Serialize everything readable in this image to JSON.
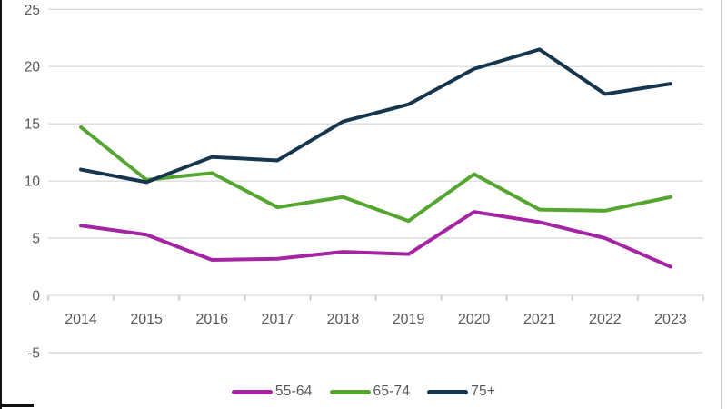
{
  "chart_data": {
    "type": "line",
    "title": "",
    "xlabel": "",
    "ylabel": "",
    "categories": [
      "2014",
      "2015",
      "2016",
      "2017",
      "2018",
      "2019",
      "2020",
      "2021",
      "2022",
      "2023"
    ],
    "series": [
      {
        "name": "55-64",
        "color": "#A524A3",
        "values": [
          6.1,
          5.3,
          3.1,
          3.2,
          3.8,
          3.6,
          7.3,
          6.4,
          5.0,
          2.5
        ]
      },
      {
        "name": "65-74",
        "color": "#55A630",
        "values": [
          14.7,
          10.1,
          10.7,
          7.7,
          8.6,
          6.5,
          10.6,
          7.5,
          7.4,
          8.6
        ]
      },
      {
        "name": "75+",
        "color": "#16364E",
        "values": [
          11.0,
          9.9,
          12.1,
          11.8,
          15.2,
          16.7,
          19.8,
          21.5,
          17.6,
          18.5
        ]
      }
    ],
    "ylim": [
      -5,
      25
    ],
    "yticks": [
      25,
      20,
      15,
      10,
      5,
      0,
      -5
    ],
    "grid": true,
    "legend_position": "bottom",
    "style": {
      "gridline_color": "#D9D9D9",
      "axis_tick_color": "#BFBFBF",
      "tick_label_color": "#595959",
      "line_width": 4
    }
  }
}
